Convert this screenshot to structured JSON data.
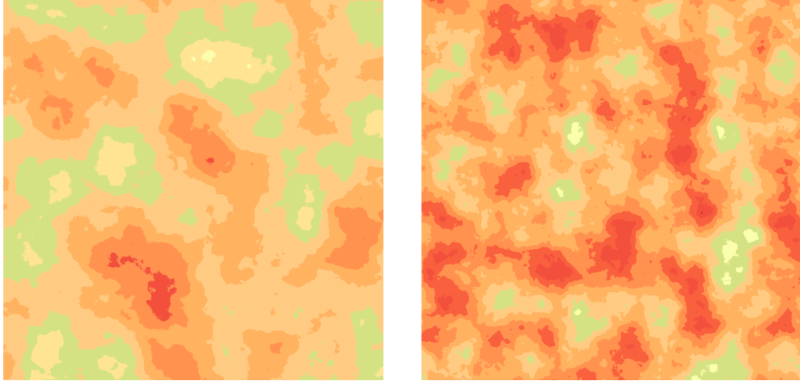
{
  "figure": {
    "panels": [
      {
        "id": "left",
        "description_colors": [
          "#1a0a8a",
          "#3a14d8",
          "#9a0a0a",
          "#e01a0a",
          "#ff5a1a",
          "#ff9c3c",
          "#b0c83a",
          "#ffff66"
        ]
      },
      {
        "id": "right",
        "description_colors": [
          "#1a0a8a",
          "#3a14d8",
          "#9a0a0a",
          "#e01a0a",
          "#ff5a1a",
          "#ff9c3c",
          "#b0c83a",
          "#ffff66"
        ]
      }
    ],
    "palette": {
      "deep_blue": "#14086a",
      "blue": "#3a18e0",
      "dark_red": "#8a0606",
      "red": "#e3140c",
      "orange_red": "#ff4a14",
      "orange": "#ff9a3a",
      "olive": "#a8c23a",
      "yellow": "#f8ff6a"
    }
  }
}
